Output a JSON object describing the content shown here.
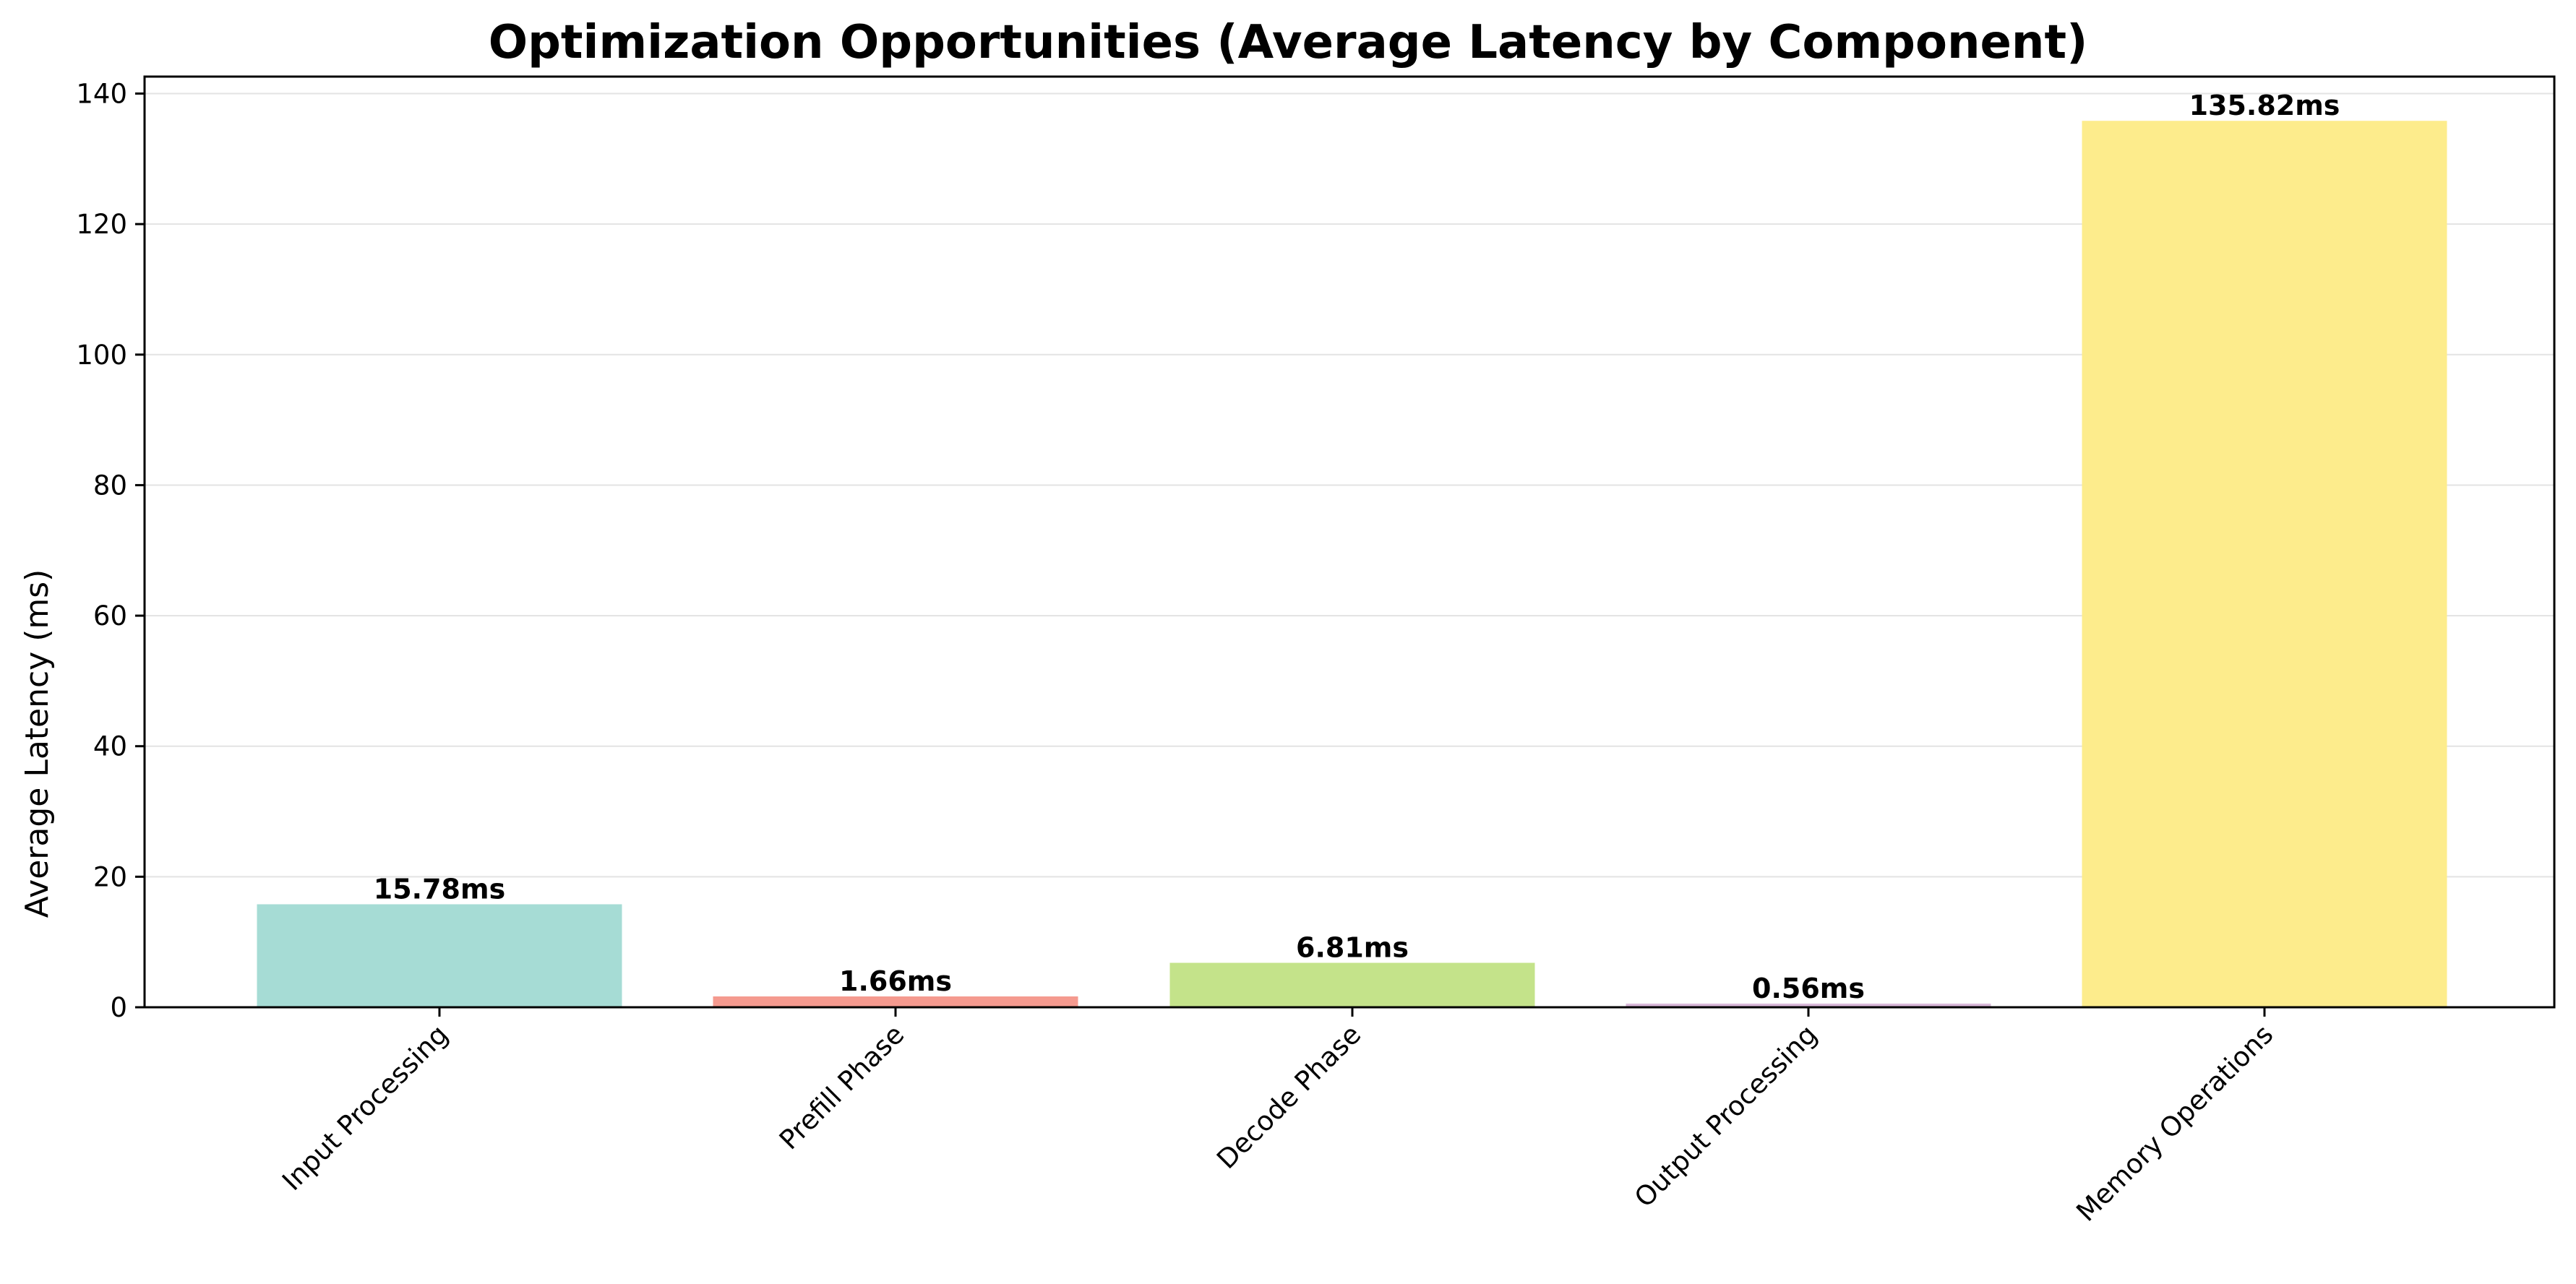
{
  "chart_data": {
    "type": "bar",
    "title": "Optimization Opportunities (Average Latency by Component)",
    "xlabel": "",
    "ylabel": "Average Latency (ms)",
    "categories": [
      "Input Processing",
      "Prefill Phase",
      "Decode Phase",
      "Output Processing",
      "Memory Operations"
    ],
    "values": [
      15.78,
      1.66,
      6.81,
      0.56,
      135.82
    ],
    "value_labels": [
      "15.78ms",
      "1.66ms",
      "6.81ms",
      "0.56ms",
      "135.82ms"
    ],
    "colors": [
      "#a6dcd5",
      "#f59a8f",
      "#c4e38a",
      "#d9b8d9",
      "#fdec8c"
    ],
    "ylim": [
      0,
      142.6
    ],
    "yticks": [
      0,
      20,
      40,
      60,
      80,
      100,
      120,
      140
    ],
    "grid": "horizontal",
    "legend": "none"
  }
}
